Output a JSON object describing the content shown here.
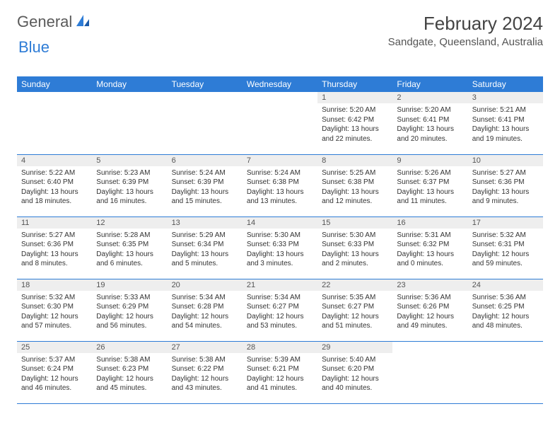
{
  "branding": {
    "logo_word1": "General",
    "logo_word2": "Blue",
    "logo_color_text": "#5a5a5a",
    "logo_color_accent": "#2e7cd6"
  },
  "header": {
    "title": "February 2024",
    "location": "Sandgate, Queensland, Australia"
  },
  "style": {
    "header_bg": "#2e7cd6",
    "header_fg": "#ffffff",
    "daynum_bg": "#eeeeee",
    "row_border": "#2e7cd6",
    "body_font_size": 10,
    "header_font_size": 12,
    "title_font_size": 26,
    "location_font_size": 15
  },
  "day_names": [
    "Sunday",
    "Monday",
    "Tuesday",
    "Wednesday",
    "Thursday",
    "Friday",
    "Saturday"
  ],
  "weeks": [
    [
      null,
      null,
      null,
      null,
      {
        "n": "1",
        "sr": "Sunrise: 5:20 AM",
        "ss": "Sunset: 6:42 PM",
        "d1": "Daylight: 13 hours",
        "d2": "and 22 minutes."
      },
      {
        "n": "2",
        "sr": "Sunrise: 5:20 AM",
        "ss": "Sunset: 6:41 PM",
        "d1": "Daylight: 13 hours",
        "d2": "and 20 minutes."
      },
      {
        "n": "3",
        "sr": "Sunrise: 5:21 AM",
        "ss": "Sunset: 6:41 PM",
        "d1": "Daylight: 13 hours",
        "d2": "and 19 minutes."
      }
    ],
    [
      {
        "n": "4",
        "sr": "Sunrise: 5:22 AM",
        "ss": "Sunset: 6:40 PM",
        "d1": "Daylight: 13 hours",
        "d2": "and 18 minutes."
      },
      {
        "n": "5",
        "sr": "Sunrise: 5:23 AM",
        "ss": "Sunset: 6:39 PM",
        "d1": "Daylight: 13 hours",
        "d2": "and 16 minutes."
      },
      {
        "n": "6",
        "sr": "Sunrise: 5:24 AM",
        "ss": "Sunset: 6:39 PM",
        "d1": "Daylight: 13 hours",
        "d2": "and 15 minutes."
      },
      {
        "n": "7",
        "sr": "Sunrise: 5:24 AM",
        "ss": "Sunset: 6:38 PM",
        "d1": "Daylight: 13 hours",
        "d2": "and 13 minutes."
      },
      {
        "n": "8",
        "sr": "Sunrise: 5:25 AM",
        "ss": "Sunset: 6:38 PM",
        "d1": "Daylight: 13 hours",
        "d2": "and 12 minutes."
      },
      {
        "n": "9",
        "sr": "Sunrise: 5:26 AM",
        "ss": "Sunset: 6:37 PM",
        "d1": "Daylight: 13 hours",
        "d2": "and 11 minutes."
      },
      {
        "n": "10",
        "sr": "Sunrise: 5:27 AM",
        "ss": "Sunset: 6:36 PM",
        "d1": "Daylight: 13 hours",
        "d2": "and 9 minutes."
      }
    ],
    [
      {
        "n": "11",
        "sr": "Sunrise: 5:27 AM",
        "ss": "Sunset: 6:36 PM",
        "d1": "Daylight: 13 hours",
        "d2": "and 8 minutes."
      },
      {
        "n": "12",
        "sr": "Sunrise: 5:28 AM",
        "ss": "Sunset: 6:35 PM",
        "d1": "Daylight: 13 hours",
        "d2": "and 6 minutes."
      },
      {
        "n": "13",
        "sr": "Sunrise: 5:29 AM",
        "ss": "Sunset: 6:34 PM",
        "d1": "Daylight: 13 hours",
        "d2": "and 5 minutes."
      },
      {
        "n": "14",
        "sr": "Sunrise: 5:30 AM",
        "ss": "Sunset: 6:33 PM",
        "d1": "Daylight: 13 hours",
        "d2": "and 3 minutes."
      },
      {
        "n": "15",
        "sr": "Sunrise: 5:30 AM",
        "ss": "Sunset: 6:33 PM",
        "d1": "Daylight: 13 hours",
        "d2": "and 2 minutes."
      },
      {
        "n": "16",
        "sr": "Sunrise: 5:31 AM",
        "ss": "Sunset: 6:32 PM",
        "d1": "Daylight: 13 hours",
        "d2": "and 0 minutes."
      },
      {
        "n": "17",
        "sr": "Sunrise: 5:32 AM",
        "ss": "Sunset: 6:31 PM",
        "d1": "Daylight: 12 hours",
        "d2": "and 59 minutes."
      }
    ],
    [
      {
        "n": "18",
        "sr": "Sunrise: 5:32 AM",
        "ss": "Sunset: 6:30 PM",
        "d1": "Daylight: 12 hours",
        "d2": "and 57 minutes."
      },
      {
        "n": "19",
        "sr": "Sunrise: 5:33 AM",
        "ss": "Sunset: 6:29 PM",
        "d1": "Daylight: 12 hours",
        "d2": "and 56 minutes."
      },
      {
        "n": "20",
        "sr": "Sunrise: 5:34 AM",
        "ss": "Sunset: 6:28 PM",
        "d1": "Daylight: 12 hours",
        "d2": "and 54 minutes."
      },
      {
        "n": "21",
        "sr": "Sunrise: 5:34 AM",
        "ss": "Sunset: 6:27 PM",
        "d1": "Daylight: 12 hours",
        "d2": "and 53 minutes."
      },
      {
        "n": "22",
        "sr": "Sunrise: 5:35 AM",
        "ss": "Sunset: 6:27 PM",
        "d1": "Daylight: 12 hours",
        "d2": "and 51 minutes."
      },
      {
        "n": "23",
        "sr": "Sunrise: 5:36 AM",
        "ss": "Sunset: 6:26 PM",
        "d1": "Daylight: 12 hours",
        "d2": "and 49 minutes."
      },
      {
        "n": "24",
        "sr": "Sunrise: 5:36 AM",
        "ss": "Sunset: 6:25 PM",
        "d1": "Daylight: 12 hours",
        "d2": "and 48 minutes."
      }
    ],
    [
      {
        "n": "25",
        "sr": "Sunrise: 5:37 AM",
        "ss": "Sunset: 6:24 PM",
        "d1": "Daylight: 12 hours",
        "d2": "and 46 minutes."
      },
      {
        "n": "26",
        "sr": "Sunrise: 5:38 AM",
        "ss": "Sunset: 6:23 PM",
        "d1": "Daylight: 12 hours",
        "d2": "and 45 minutes."
      },
      {
        "n": "27",
        "sr": "Sunrise: 5:38 AM",
        "ss": "Sunset: 6:22 PM",
        "d1": "Daylight: 12 hours",
        "d2": "and 43 minutes."
      },
      {
        "n": "28",
        "sr": "Sunrise: 5:39 AM",
        "ss": "Sunset: 6:21 PM",
        "d1": "Daylight: 12 hours",
        "d2": "and 41 minutes."
      },
      {
        "n": "29",
        "sr": "Sunrise: 5:40 AM",
        "ss": "Sunset: 6:20 PM",
        "d1": "Daylight: 12 hours",
        "d2": "and 40 minutes."
      },
      null,
      null
    ]
  ]
}
